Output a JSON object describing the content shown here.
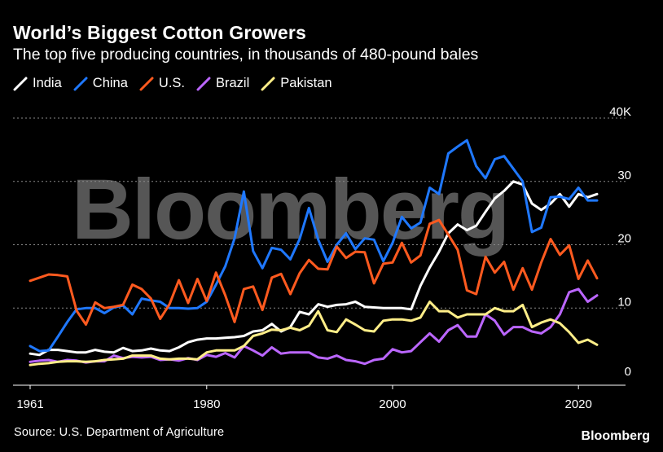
{
  "header": {
    "title": "World’s Biggest Cotton Growers",
    "subtitle": "The top five producing countries, in thousands of 480-pound bales"
  },
  "footer": {
    "source": "Source: U.S. Department of Agriculture",
    "brand": "Bloomberg"
  },
  "watermark": "Bloomberg",
  "chart_data": {
    "type": "line",
    "title": "World’s Biggest Cotton Growers",
    "subtitle": "The top five producing countries, in thousands of 480-pound bales",
    "xlabel": "",
    "ylabel": "",
    "xlim": [
      1961,
      2022
    ],
    "ylim": [
      0,
      40
    ],
    "y_ticks": [
      0,
      10,
      20,
      30,
      40
    ],
    "y_tick_labels": [
      "0",
      "10",
      "20",
      "30",
      "40K"
    ],
    "x_ticks": [
      1961,
      1980,
      2000,
      2020
    ],
    "x_tick_labels": [
      "1961",
      "1980",
      "2000",
      "2020"
    ],
    "grid": "horizontal dotted",
    "legend": "top-left",
    "x": [
      1961,
      1962,
      1963,
      1964,
      1965,
      1966,
      1967,
      1968,
      1969,
      1970,
      1971,
      1972,
      1973,
      1974,
      1975,
      1976,
      1977,
      1978,
      1979,
      1980,
      1981,
      1982,
      1983,
      1984,
      1985,
      1986,
      1987,
      1988,
      1989,
      1990,
      1991,
      1992,
      1993,
      1994,
      1995,
      1996,
      1997,
      1998,
      1999,
      2000,
      2001,
      2002,
      2003,
      2004,
      2005,
      2006,
      2007,
      2008,
      2009,
      2010,
      2011,
      2012,
      2013,
      2014,
      2015,
      2016,
      2017,
      2018,
      2019,
      2020,
      2021,
      2022
    ],
    "series": [
      {
        "name": "India",
        "color": "#ffffff",
        "values": [
          2.8,
          2.6,
          3.4,
          3.4,
          3.2,
          3.0,
          3.0,
          3.4,
          3.1,
          3.0,
          3.7,
          3.2,
          3.3,
          3.6,
          3.3,
          3.2,
          3.8,
          4.6,
          5.0,
          5.2,
          5.2,
          5.3,
          5.4,
          5.6,
          6.3,
          6.5,
          7.5,
          6.3,
          7.0,
          9.4,
          9.0,
          10.6,
          10.2,
          10.5,
          10.6,
          11.0,
          10.2,
          10.1,
          10.0,
          10.0,
          10.0,
          9.8,
          13.5,
          16.4,
          18.9,
          21.8,
          23.2,
          22.3,
          23.0,
          25.2,
          27.3,
          28.5,
          30.0,
          29.5,
          26.5,
          25.5,
          26.5,
          28.0,
          26.0,
          28.0,
          27.5,
          28.0
        ]
      },
      {
        "name": "China",
        "color": "#1f78ff",
        "values": [
          4.0,
          3.2,
          3.3,
          5.5,
          7.8,
          9.8,
          10.0,
          10.0,
          9.2,
          10.1,
          10.4,
          9.0,
          11.5,
          11.2,
          11.0,
          10.0,
          10.0,
          9.9,
          10.0,
          11.0,
          13.7,
          16.6,
          21.0,
          28.4,
          19.0,
          16.3,
          19.5,
          19.2,
          17.7,
          20.9,
          25.8,
          20.8,
          17.3,
          20.0,
          21.8,
          19.3,
          21.0,
          20.8,
          17.4,
          20.3,
          24.4,
          22.6,
          23.5,
          29.0,
          28.0,
          34.4,
          35.5,
          36.5,
          32.4,
          30.5,
          33.5,
          34.0,
          32.0,
          30.0,
          22.0,
          22.7,
          27.5,
          27.6,
          27.2,
          29.0,
          27.0,
          27.0
        ]
      },
      {
        "name": "U.S.",
        "color": "#ff5a1f",
        "values": [
          14.3,
          14.8,
          15.3,
          15.2,
          15.0,
          9.6,
          7.4,
          10.9,
          10.0,
          10.2,
          10.5,
          13.7,
          13.0,
          11.5,
          8.3,
          10.6,
          14.4,
          10.8,
          14.6,
          11.1,
          15.6,
          12.0,
          7.8,
          13.0,
          13.4,
          9.7,
          14.8,
          15.4,
          12.2,
          15.5,
          17.6,
          16.2,
          16.1,
          19.7,
          17.9,
          18.9,
          18.8,
          13.9,
          17.0,
          17.2,
          20.3,
          17.2,
          18.3,
          23.3,
          23.9,
          21.6,
          19.2,
          12.8,
          12.2,
          18.1,
          15.6,
          17.3,
          12.9,
          16.3,
          12.9,
          17.2,
          20.9,
          18.4,
          19.9,
          14.6,
          17.5,
          14.7
        ]
      },
      {
        "name": "Brazil",
        "color": "#bb66ff",
        "values": [
          1.5,
          1.7,
          1.8,
          1.5,
          1.8,
          1.7,
          1.4,
          1.6,
          1.6,
          2.5,
          2.1,
          2.3,
          2.2,
          2.3,
          1.8,
          1.9,
          1.7,
          2.1,
          1.8,
          2.6,
          2.3,
          2.9,
          2.2,
          4.0,
          3.3,
          2.5,
          3.8,
          2.8,
          3.0,
          3.0,
          3.0,
          2.2,
          2.0,
          2.5,
          1.8,
          1.6,
          1.2,
          1.8,
          2.0,
          3.5,
          3.0,
          3.2,
          4.6,
          6.0,
          4.7,
          6.5,
          7.3,
          5.5,
          5.5,
          9.0,
          8.0,
          5.8,
          7.0,
          7.0,
          6.3,
          6.0,
          7.0,
          9.0,
          12.5,
          13.0,
          11.0,
          12.0
        ]
      },
      {
        "name": "Pakistan",
        "color": "#ffee88",
        "values": [
          1.0,
          1.2,
          1.3,
          1.5,
          1.6,
          1.6,
          1.5,
          1.6,
          1.8,
          1.9,
          2.0,
          2.5,
          2.5,
          2.5,
          2.0,
          1.9,
          2.0,
          2.0,
          1.9,
          3.0,
          3.3,
          3.3,
          3.3,
          4.0,
          5.6,
          6.0,
          6.6,
          6.5,
          6.9,
          6.5,
          7.2,
          9.5,
          6.5,
          6.2,
          8.2,
          7.4,
          6.5,
          6.3,
          8.0,
          8.2,
          8.2,
          8.0,
          8.5,
          11.0,
          9.5,
          9.5,
          8.5,
          9.0,
          9.0,
          9.0,
          10.0,
          9.5,
          9.5,
          10.5,
          7.0,
          7.7,
          8.2,
          7.6,
          6.2,
          4.5,
          5.0,
          4.2
        ]
      }
    ]
  }
}
